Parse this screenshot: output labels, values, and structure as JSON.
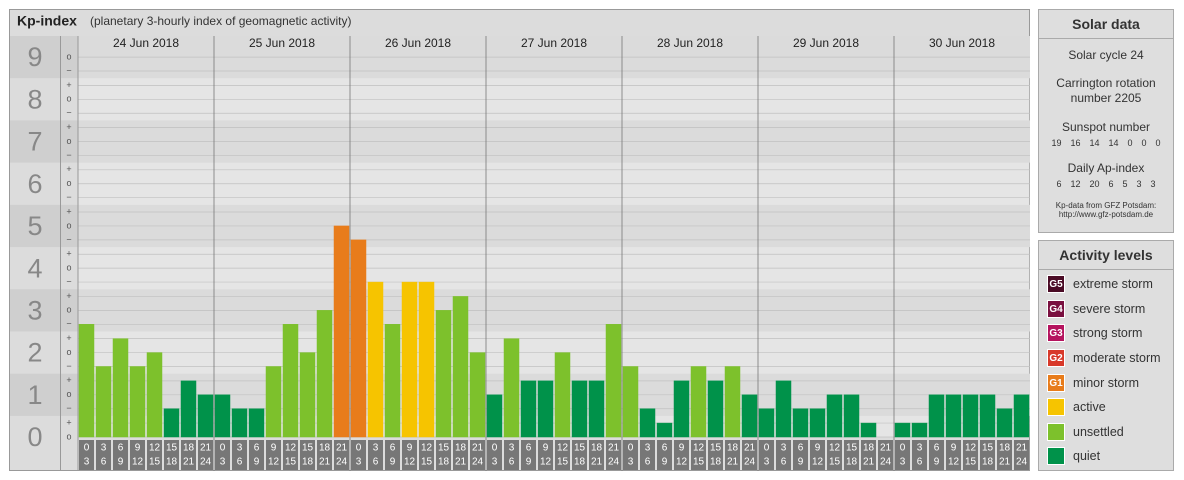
{
  "chart_data": {
    "type": "bar",
    "title": "Kp-index",
    "subtitle": "(planetary 3-hourly index of geomagnetic activity)",
    "ylim": [
      0,
      9.5
    ],
    "yticks": [
      0,
      1,
      2,
      3,
      4,
      5,
      6,
      7,
      8,
      9
    ],
    "minor_yticks": [
      {
        "value": 0,
        "label": "o"
      },
      {
        "value": 0.33,
        "label": "+"
      },
      {
        "value": 0.67,
        "label": "−"
      },
      {
        "value": 1,
        "label": "o"
      },
      {
        "value": 1.33,
        "label": "+"
      },
      {
        "value": 1.67,
        "label": "−"
      },
      {
        "value": 2,
        "label": "o"
      },
      {
        "value": 2.33,
        "label": "+"
      },
      {
        "value": 2.67,
        "label": "−"
      },
      {
        "value": 3,
        "label": "o"
      },
      {
        "value": 3.33,
        "label": "+"
      },
      {
        "value": 3.67,
        "label": "−"
      },
      {
        "value": 4,
        "label": "o"
      },
      {
        "value": 4.33,
        "label": "+"
      },
      {
        "value": 4.67,
        "label": "−"
      },
      {
        "value": 5,
        "label": "o"
      },
      {
        "value": 5.33,
        "label": "+"
      },
      {
        "value": 5.67,
        "label": "−"
      },
      {
        "value": 6,
        "label": "o"
      },
      {
        "value": 6.33,
        "label": "+"
      },
      {
        "value": 6.67,
        "label": "−"
      },
      {
        "value": 7,
        "label": "o"
      },
      {
        "value": 7.33,
        "label": "+"
      },
      {
        "value": 7.67,
        "label": "−"
      },
      {
        "value": 8,
        "label": "o"
      },
      {
        "value": 8.33,
        "label": "+"
      },
      {
        "value": 8.67,
        "label": "−"
      },
      {
        "value": 9,
        "label": "o"
      }
    ],
    "hour_labels": [
      [
        "0",
        "3"
      ],
      [
        "3",
        "6"
      ],
      [
        "6",
        "9"
      ],
      [
        "9",
        "12"
      ],
      [
        "12",
        "15"
      ],
      [
        "15",
        "18"
      ],
      [
        "18",
        "21"
      ],
      [
        "21",
        "24"
      ]
    ],
    "series": [
      {
        "name": "24 Jun 2018",
        "values": [
          2.67,
          1.67,
          2.33,
          1.67,
          2,
          0.67,
          1.33,
          1
        ],
        "colors": [
          "#7dc12c",
          "#7dc12c",
          "#7dc12c",
          "#7dc12c",
          "#7dc12c",
          "#00924a",
          "#00924a",
          "#00924a"
        ]
      },
      {
        "name": "25 Jun 2018",
        "values": [
          1,
          0.67,
          0.67,
          1.67,
          2.67,
          2,
          3,
          5
        ],
        "colors": [
          "#00924a",
          "#00924a",
          "#00924a",
          "#7dc12c",
          "#7dc12c",
          "#7dc12c",
          "#7dc12c",
          "#e87c1b"
        ]
      },
      {
        "name": "26 Jun 2018",
        "values": [
          4.67,
          3.67,
          2.67,
          3.67,
          3.67,
          3,
          3.33,
          2
        ],
        "colors": [
          "#e87c1b",
          "#f6c400",
          "#7dc12c",
          "#f6c400",
          "#f6c400",
          "#7dc12c",
          "#7dc12c",
          "#7dc12c"
        ]
      },
      {
        "name": "27 Jun 2018",
        "values": [
          1,
          2.33,
          1.33,
          1.33,
          2,
          1.33,
          1.33,
          2.67
        ],
        "colors": [
          "#00924a",
          "#7dc12c",
          "#00924a",
          "#00924a",
          "#7dc12c",
          "#00924a",
          "#00924a",
          "#7dc12c"
        ]
      },
      {
        "name": "28 Jun 2018",
        "values": [
          1.67,
          0.67,
          0.33,
          1.33,
          1.67,
          1.33,
          1.67,
          1
        ],
        "colors": [
          "#7dc12c",
          "#00924a",
          "#00924a",
          "#00924a",
          "#7dc12c",
          "#00924a",
          "#7dc12c",
          "#00924a"
        ]
      },
      {
        "name": "29 Jun 2018",
        "values": [
          0.67,
          1.33,
          0.67,
          0.67,
          1,
          1,
          0.33,
          0
        ],
        "colors": [
          "#00924a",
          "#00924a",
          "#00924a",
          "#00924a",
          "#00924a",
          "#00924a",
          "#00924a",
          "#00924a"
        ]
      },
      {
        "name": "30 Jun 2018",
        "values": [
          0.33,
          0.33,
          1,
          1,
          1,
          1,
          0.67,
          1
        ],
        "colors": [
          "#00924a",
          "#00924a",
          "#00924a",
          "#00924a",
          "#00924a",
          "#00924a",
          "#00924a",
          "#00924a"
        ]
      }
    ]
  },
  "solar_data": {
    "title": "Solar data",
    "cycle": "Solar cycle 24",
    "carrington": "Carrington rotation number 2205",
    "sunspot_title": "Sunspot number",
    "sunspots": [
      19,
      16,
      14,
      14,
      0,
      0,
      0
    ],
    "ap_title": "Daily Ap-index",
    "ap": [
      6,
      12,
      20,
      6,
      5,
      3,
      3
    ],
    "source": "Kp-data from GFZ Potsdam:",
    "url": "http://www.gfz-potsdam.de"
  },
  "activity_levels": {
    "title": "Activity levels",
    "levels": [
      {
        "badge": "G5",
        "label": "extreme storm",
        "color": "#4a0b25"
      },
      {
        "badge": "G4",
        "label": "severe storm",
        "color": "#7a1040"
      },
      {
        "badge": "G3",
        "label": "strong storm",
        "color": "#b5135e"
      },
      {
        "badge": "G2",
        "label": "moderate storm",
        "color": "#d8392a"
      },
      {
        "badge": "G1",
        "label": "minor storm",
        "color": "#e87c1b"
      },
      {
        "badge": null,
        "label": "active",
        "color": "#f6c400"
      },
      {
        "badge": null,
        "label": "unsettled",
        "color": "#7dc12c"
      },
      {
        "badge": null,
        "label": "quiet",
        "color": "#00924a"
      }
    ]
  }
}
